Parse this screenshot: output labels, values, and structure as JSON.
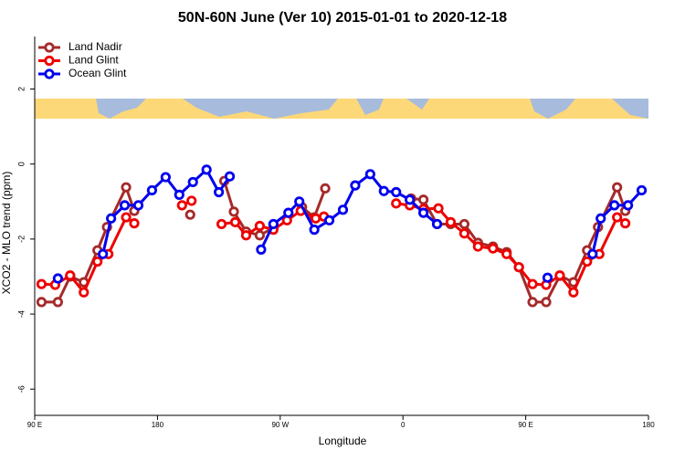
{
  "chart_data": {
    "type": "line",
    "title": "50N-60N June (Ver 10)   2015-01-01 to 2020-12-18",
    "xlabel": "Longitude",
    "ylabel": "XCO2 - MLO trend (ppm)",
    "xlim": [
      90,
      540
    ],
    "ylim": [
      -6.7,
      3.4
    ],
    "xticks": [
      {
        "value": 90,
        "label": "90 E"
      },
      180,
      {
        "value": 270,
        "label": "90 W"
      },
      {
        "value": 360,
        "label": "0"
      },
      {
        "value": 450,
        "label": "90 E"
      },
      {
        "value": 540,
        "label": "180"
      }
    ],
    "yticks": [
      -6,
      -4,
      -2,
      0,
      2
    ],
    "legend": "top-left",
    "series": [
      {
        "name": "Land Nadir",
        "color": "#a52a2a",
        "x": [
          95,
          107,
          116,
          126,
          136,
          143,
          157,
          163,
          185,
          204,
          225,
          229,
          236,
          245,
          255,
          265,
          275,
          286,
          295,
          303,
          380,
          366,
          375,
          385,
          395,
          405,
          415,
          426,
          436,
          445,
          455,
          465,
          475,
          485,
          495,
          503,
          517,
          523
        ],
        "values": [
          -3.68,
          -3.68,
          -3.0,
          -3.15,
          -2.3,
          -1.68,
          -0.62,
          -1.25,
          null,
          -1.35,
          null,
          -0.45,
          -1.27,
          -1.8,
          -1.9,
          -1.7,
          null,
          -1.15,
          -1.42,
          -0.65,
          null,
          -0.92,
          -0.95,
          -1.6,
          -1.6,
          -1.6,
          -2.1,
          -2.2,
          -2.35,
          -2.75,
          -3.68,
          -3.68,
          -2.98,
          -3.15,
          -2.3,
          -1.68,
          -0.62,
          -1.25
        ]
      },
      {
        "name": "Land Glint",
        "color": "#ee0000",
        "x": [
          95,
          105,
          116,
          126,
          136,
          144,
          157,
          163,
          180,
          198,
          205,
          220,
          227,
          237,
          245,
          255,
          265,
          275,
          285,
          296,
          302,
          330,
          355,
          365,
          375,
          386,
          395,
          405,
          415,
          426,
          436,
          445,
          455,
          465,
          475,
          485,
          495,
          504,
          517,
          523
        ],
        "values": [
          -3.2,
          -3.22,
          -2.97,
          -3.42,
          -2.6,
          -2.4,
          -1.42,
          -1.58,
          null,
          -1.1,
          -0.98,
          null,
          -1.6,
          -1.55,
          -1.9,
          -1.65,
          -1.75,
          -1.5,
          -1.25,
          -1.45,
          -1.4,
          null,
          -1.05,
          -1.1,
          -1.2,
          -1.18,
          -1.55,
          -1.85,
          -2.2,
          -2.25,
          -2.4,
          -2.75,
          -3.2,
          -3.22,
          -2.97,
          -3.42,
          -2.6,
          -2.4,
          -1.42,
          -1.58
        ]
      },
      {
        "name": "Ocean Glint",
        "color": "#0000ee",
        "x": [
          107,
          125,
          140,
          146,
          156,
          166,
          176,
          186,
          196,
          206,
          216,
          225,
          233,
          245,
          256,
          265,
          276,
          284,
          295,
          306,
          316,
          325,
          336,
          346,
          355,
          365,
          375,
          385,
          420,
          466,
          480,
          499,
          505,
          515,
          525,
          535
        ],
        "values": [
          -3.05,
          null,
          -2.4,
          -1.45,
          -1.1,
          -1.1,
          -0.7,
          -0.35,
          -0.82,
          -0.48,
          -0.15,
          -0.75,
          -0.33,
          null,
          -2.28,
          -1.6,
          -1.3,
          -1.0,
          -1.75,
          -1.5,
          -1.22,
          -0.57,
          -0.27,
          -0.72,
          -0.75,
          -0.95,
          -1.3,
          -1.6,
          null,
          -3.03,
          null,
          -2.4,
          -1.45,
          -1.1,
          -1.1,
          -0.7
        ]
      }
    ]
  }
}
